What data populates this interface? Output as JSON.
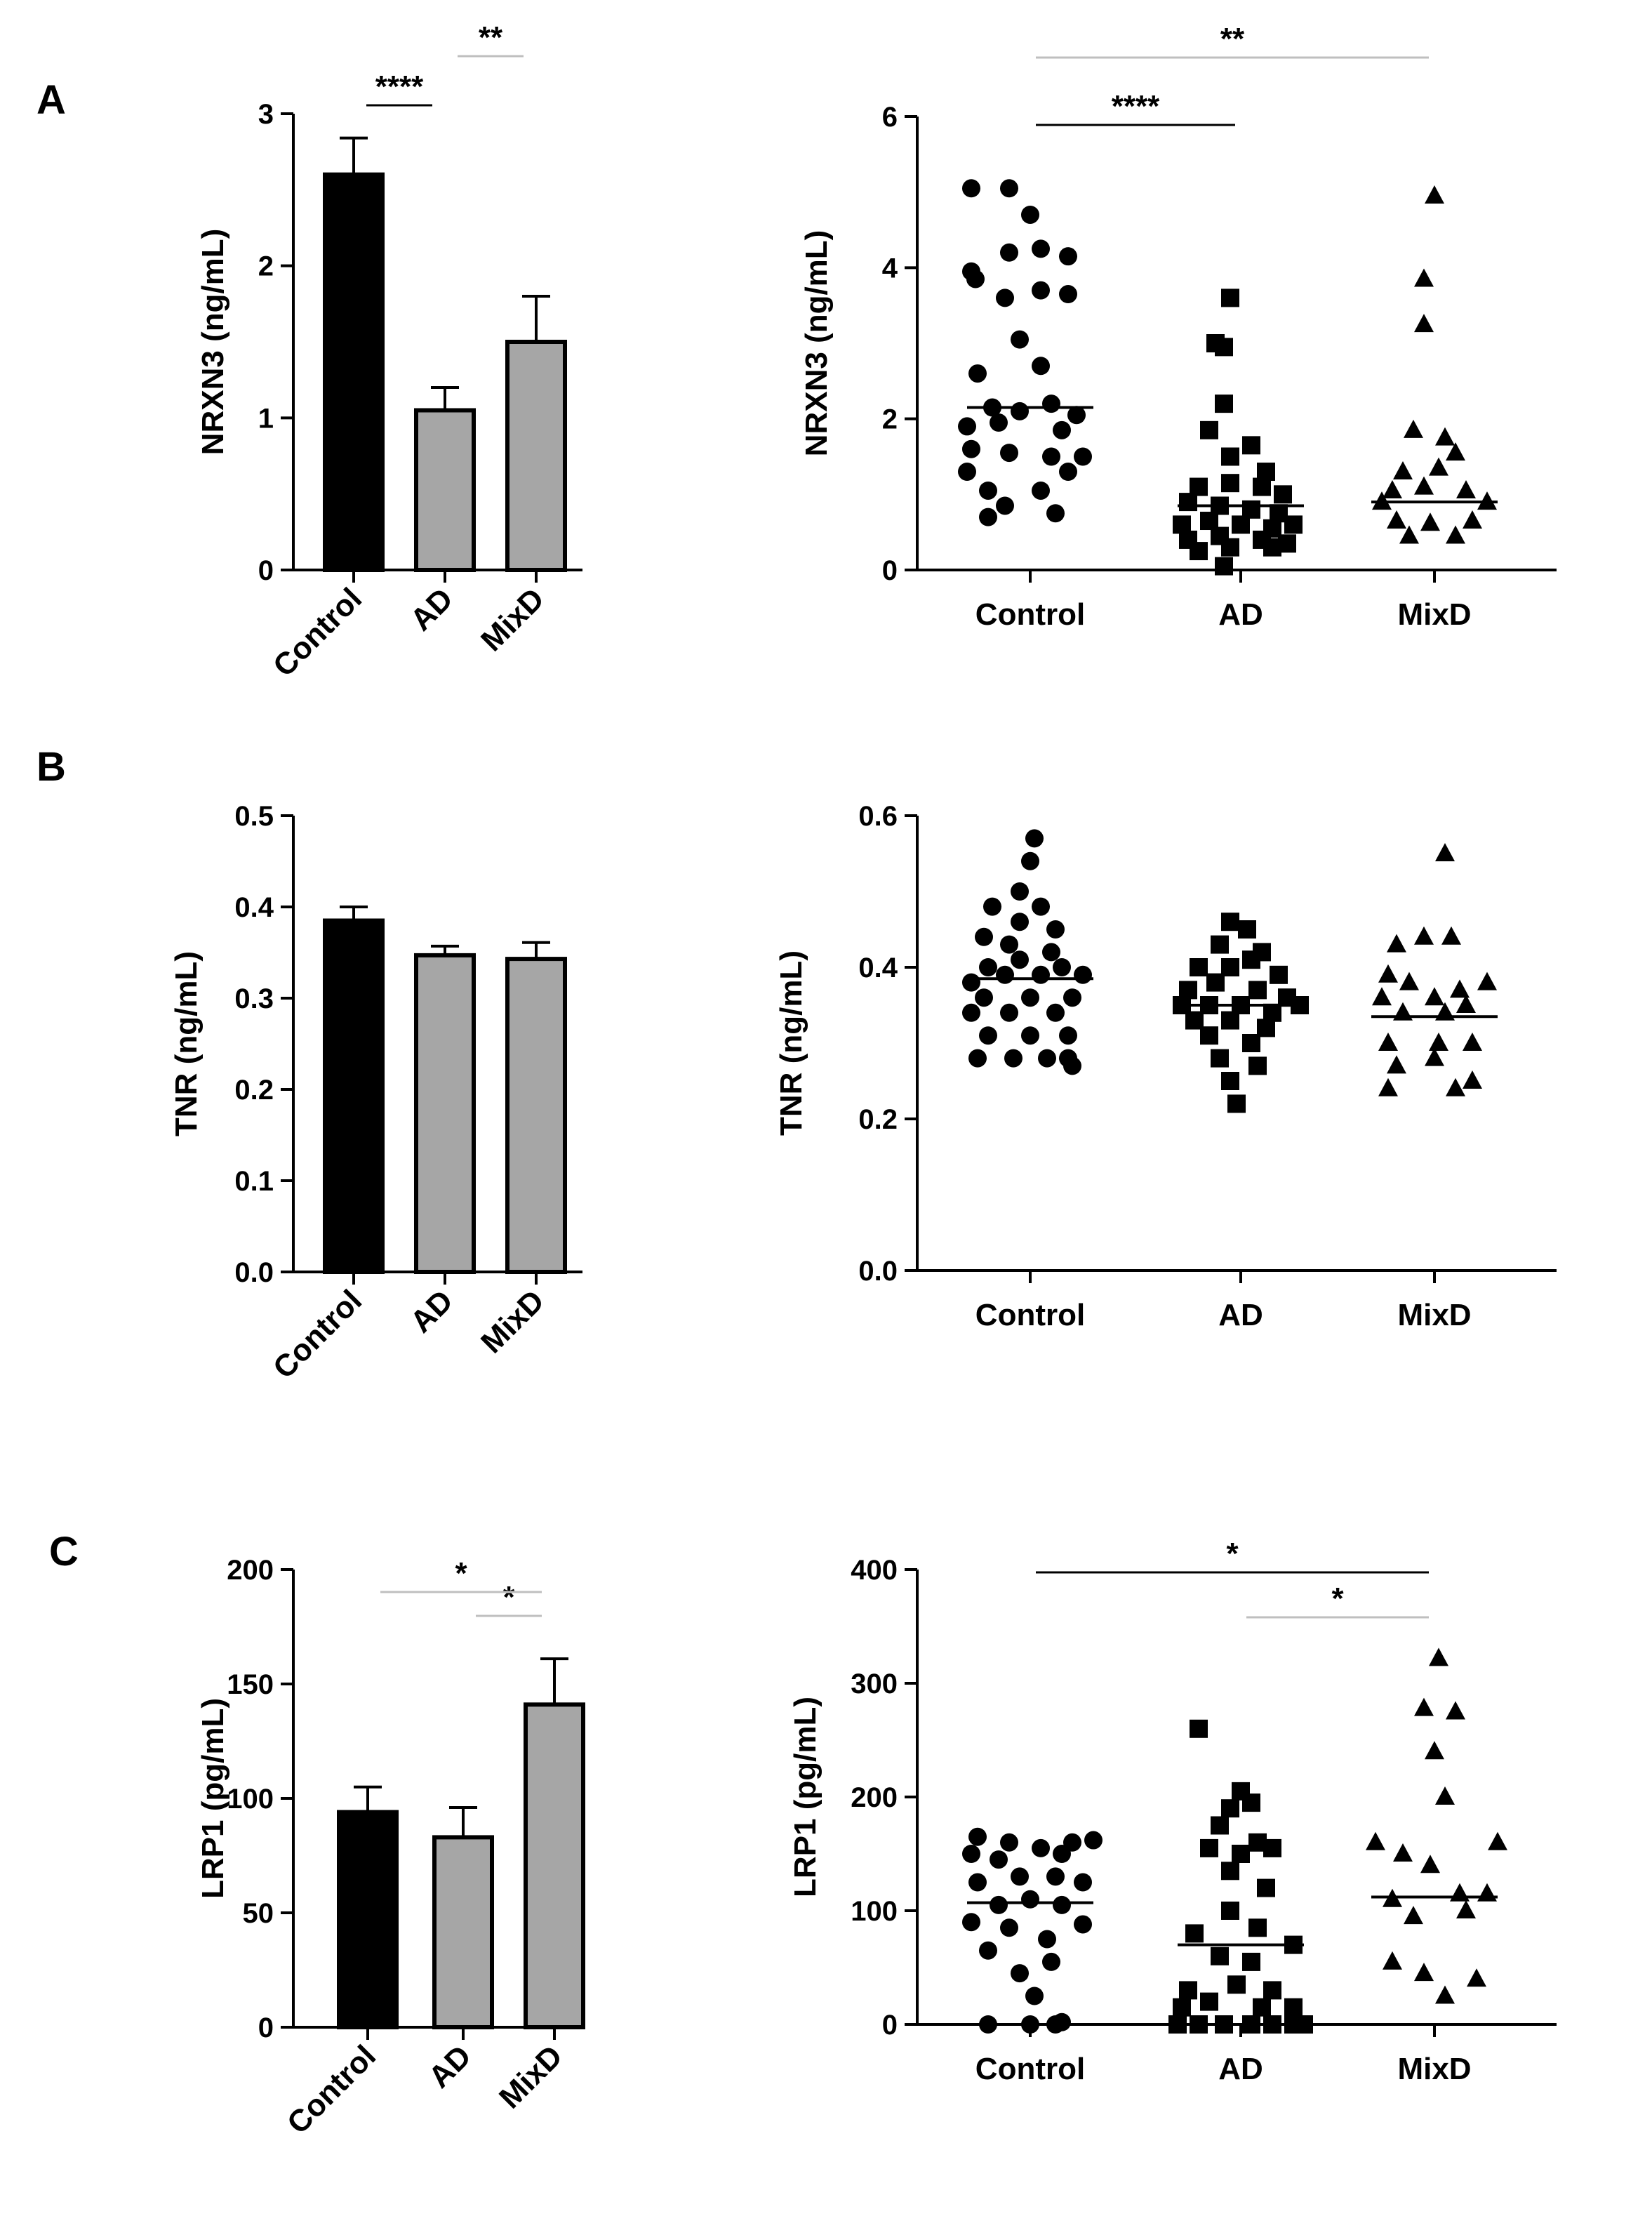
{
  "colors": {
    "control_bar": "#000000",
    "group_bar": "#a6a6a6",
    "mark": "#000000",
    "sig_line_dark": "#000000",
    "sig_line_light": "#bfbfbf"
  },
  "chart_data": [
    {
      "id": "A-bar",
      "panel": "A",
      "type": "bar",
      "ylabel": "NRXN3 (ng/mL)",
      "ylim": [
        0,
        3
      ],
      "yticks": [
        "0",
        "1",
        "2",
        "3"
      ],
      "categories": [
        "Control",
        "AD",
        "MixD"
      ],
      "values": [
        2.6,
        1.05,
        1.5
      ],
      "errors": [
        0.24,
        0.15,
        0.3
      ],
      "significance": [
        {
          "from": 0,
          "to": 1,
          "label": "****",
          "level": 1,
          "shade": "dark"
        },
        {
          "from": 1,
          "to": 2,
          "label": "**",
          "level": 2,
          "shade": "light"
        }
      ]
    },
    {
      "id": "A-scatter",
      "panel": "A",
      "type": "scatter",
      "ylabel": "NRXN3 (ng/mL)",
      "ylim": [
        0,
        6
      ],
      "yticks": [
        "0",
        "2",
        "4",
        "6"
      ],
      "categories": [
        "Control",
        "AD",
        "MixD"
      ],
      "markers": [
        "circle",
        "square",
        "triangle"
      ],
      "points": [
        [
          [
            -0.28,
            5.05
          ],
          [
            -0.1,
            5.05
          ],
          [
            0,
            4.7
          ],
          [
            -0.28,
            3.95
          ],
          [
            -0.1,
            4.2
          ],
          [
            0.05,
            4.25
          ],
          [
            0.18,
            4.15
          ],
          [
            -0.26,
            3.85
          ],
          [
            -0.12,
            3.6
          ],
          [
            0.05,
            3.7
          ],
          [
            0.18,
            3.65
          ],
          [
            -0.05,
            3.05
          ],
          [
            -0.25,
            2.6
          ],
          [
            0.05,
            2.7
          ],
          [
            -0.18,
            2.15
          ],
          [
            0.1,
            2.2
          ],
          [
            -0.05,
            2.1
          ],
          [
            0.22,
            2.05
          ],
          [
            -0.3,
            1.9
          ],
          [
            -0.15,
            1.95
          ],
          [
            0.15,
            1.85
          ],
          [
            -0.28,
            1.6
          ],
          [
            -0.1,
            1.55
          ],
          [
            0.1,
            1.5
          ],
          [
            0.25,
            1.5
          ],
          [
            -0.3,
            1.3
          ],
          [
            0.18,
            1.3
          ],
          [
            -0.2,
            1.05
          ],
          [
            0.05,
            1.05
          ],
          [
            -0.12,
            0.85
          ],
          [
            -0.2,
            0.7
          ],
          [
            0.12,
            0.75
          ]
        ],
        [
          [
            -0.05,
            3.6
          ],
          [
            -0.12,
            3.0
          ],
          [
            -0.08,
            2.95
          ],
          [
            -0.08,
            2.2
          ],
          [
            0.05,
            1.65
          ],
          [
            -0.15,
            1.85
          ],
          [
            -0.05,
            1.5
          ],
          [
            0.12,
            1.3
          ],
          [
            -0.2,
            1.1
          ],
          [
            -0.05,
            1.15
          ],
          [
            0.1,
            1.1
          ],
          [
            0.2,
            1.0
          ],
          [
            -0.25,
            0.9
          ],
          [
            -0.1,
            0.85
          ],
          [
            0.05,
            0.8
          ],
          [
            0.18,
            0.75
          ],
          [
            -0.28,
            0.6
          ],
          [
            -0.15,
            0.65
          ],
          [
            0.0,
            0.6
          ],
          [
            0.15,
            0.55
          ],
          [
            0.25,
            0.6
          ],
          [
            -0.25,
            0.4
          ],
          [
            -0.1,
            0.45
          ],
          [
            0.1,
            0.4
          ],
          [
            0.22,
            0.35
          ],
          [
            -0.2,
            0.25
          ],
          [
            -0.05,
            0.3
          ],
          [
            0.15,
            0.3
          ],
          [
            -0.08,
            0.05
          ]
        ],
        [
          [
            0.0,
            4.95
          ],
          [
            -0.05,
            3.85
          ],
          [
            -0.05,
            3.25
          ],
          [
            -0.1,
            1.85
          ],
          [
            0.05,
            1.75
          ],
          [
            0.1,
            1.55
          ],
          [
            -0.15,
            1.3
          ],
          [
            0.02,
            1.35
          ],
          [
            -0.2,
            1.05
          ],
          [
            -0.05,
            1.1
          ],
          [
            0.15,
            1.05
          ],
          [
            -0.25,
            0.9
          ],
          [
            0.25,
            0.9
          ],
          [
            -0.18,
            0.65
          ],
          [
            -0.02,
            0.62
          ],
          [
            0.18,
            0.65
          ],
          [
            -0.12,
            0.45
          ],
          [
            0.1,
            0.45
          ]
        ]
      ],
      "medians": [
        2.15,
        0.85,
        0.9
      ],
      "significance": [
        {
          "from": 0,
          "to": 1,
          "label": "****",
          "level": 1,
          "shade": "dark"
        },
        {
          "from": 0,
          "to": 2,
          "label": "**",
          "level": 2,
          "shade": "light"
        }
      ]
    },
    {
      "id": "B-bar",
      "panel": "B",
      "type": "bar",
      "ylabel": "TNR (ng/mL)",
      "ylim": [
        0,
        0.5
      ],
      "yticks": [
        "0.0",
        "0.1",
        "0.2",
        "0.3",
        "0.4",
        "0.5"
      ],
      "categories": [
        "Control",
        "AD",
        "MixD"
      ],
      "values": [
        0.385,
        0.347,
        0.343
      ],
      "errors": [
        0.015,
        0.01,
        0.018
      ],
      "significance": []
    },
    {
      "id": "B-scatter",
      "panel": "B",
      "type": "scatter",
      "ylabel": "TNR (ng/mL)",
      "ylim": [
        0,
        0.6
      ],
      "yticks": [
        "0.0",
        "0.2",
        "0.4",
        "0.6"
      ],
      "categories": [
        "Control",
        "AD",
        "MixD"
      ],
      "markers": [
        "circle",
        "square",
        "triangle"
      ],
      "points": [
        [
          [
            0.02,
            0.57
          ],
          [
            0.0,
            0.54
          ],
          [
            -0.05,
            0.5
          ],
          [
            -0.18,
            0.48
          ],
          [
            0.05,
            0.48
          ],
          [
            -0.05,
            0.46
          ],
          [
            0.12,
            0.45
          ],
          [
            -0.22,
            0.44
          ],
          [
            -0.1,
            0.43
          ],
          [
            0.1,
            0.42
          ],
          [
            -0.2,
            0.4
          ],
          [
            -0.05,
            0.41
          ],
          [
            0.15,
            0.4
          ],
          [
            -0.28,
            0.38
          ],
          [
            -0.12,
            0.39
          ],
          [
            0.05,
            0.39
          ],
          [
            0.25,
            0.39
          ],
          [
            -0.22,
            0.36
          ],
          [
            0.0,
            0.36
          ],
          [
            0.2,
            0.36
          ],
          [
            -0.28,
            0.34
          ],
          [
            -0.1,
            0.34
          ],
          [
            0.12,
            0.34
          ],
          [
            -0.2,
            0.31
          ],
          [
            0.0,
            0.31
          ],
          [
            0.18,
            0.31
          ],
          [
            -0.25,
            0.28
          ],
          [
            -0.08,
            0.28
          ],
          [
            0.08,
            0.28
          ],
          [
            0.18,
            0.28
          ],
          [
            0.2,
            0.27
          ]
        ],
        [
          [
            -0.05,
            0.46
          ],
          [
            0.03,
            0.45
          ],
          [
            -0.1,
            0.43
          ],
          [
            0.1,
            0.42
          ],
          [
            -0.2,
            0.4
          ],
          [
            -0.05,
            0.4
          ],
          [
            0.05,
            0.41
          ],
          [
            0.18,
            0.39
          ],
          [
            -0.25,
            0.37
          ],
          [
            -0.12,
            0.38
          ],
          [
            0.08,
            0.37
          ],
          [
            0.22,
            0.36
          ],
          [
            -0.28,
            0.35
          ],
          [
            -0.15,
            0.35
          ],
          [
            0.0,
            0.35
          ],
          [
            0.15,
            0.34
          ],
          [
            0.28,
            0.35
          ],
          [
            -0.22,
            0.33
          ],
          [
            -0.05,
            0.33
          ],
          [
            0.12,
            0.32
          ],
          [
            -0.15,
            0.31
          ],
          [
            0.05,
            0.3
          ],
          [
            -0.1,
            0.28
          ],
          [
            0.08,
            0.27
          ],
          [
            -0.05,
            0.25
          ],
          [
            -0.02,
            0.22
          ]
        ],
        [
          [
            0.05,
            0.55
          ],
          [
            -0.05,
            0.44
          ],
          [
            0.08,
            0.44
          ],
          [
            -0.18,
            0.43
          ],
          [
            -0.22,
            0.39
          ],
          [
            -0.12,
            0.38
          ],
          [
            0.12,
            0.37
          ],
          [
            0.25,
            0.38
          ],
          [
            -0.25,
            0.36
          ],
          [
            0.0,
            0.36
          ],
          [
            0.15,
            0.35
          ],
          [
            -0.15,
            0.34
          ],
          [
            0.05,
            0.34
          ],
          [
            -0.22,
            0.3
          ],
          [
            0.02,
            0.3
          ],
          [
            0.18,
            0.3
          ],
          [
            -0.18,
            0.27
          ],
          [
            0.0,
            0.28
          ],
          [
            -0.22,
            0.24
          ],
          [
            0.1,
            0.24
          ],
          [
            0.18,
            0.25
          ]
        ]
      ],
      "medians": [
        0.385,
        0.35,
        0.335
      ],
      "significance": []
    },
    {
      "id": "C-bar",
      "panel": "C",
      "type": "bar",
      "ylabel": "LRP1 (pg/mL)",
      "ylim": [
        0,
        200
      ],
      "yticks": [
        "0",
        "50",
        "100",
        "150",
        "200"
      ],
      "categories": [
        "Control",
        "AD",
        "MixD"
      ],
      "values": [
        94,
        83,
        141
      ],
      "errors": [
        11,
        13,
        20
      ],
      "significance": [
        {
          "from": 1,
          "to": 2,
          "label": "*",
          "level": 1,
          "shade": "light"
        },
        {
          "from": 0,
          "to": 2,
          "label": "*",
          "level": 2,
          "shade": "light"
        }
      ]
    },
    {
      "id": "C-scatter",
      "panel": "C",
      "type": "scatter",
      "ylabel": "LRP1 (pg/mL)",
      "ylim": [
        0,
        400
      ],
      "yticks": [
        "0",
        "100",
        "200",
        "300",
        "400"
      ],
      "categories": [
        "Control",
        "AD",
        "MixD"
      ],
      "markers": [
        "circle",
        "square",
        "triangle"
      ],
      "points": [
        [
          [
            -0.25,
            165
          ],
          [
            -0.1,
            160
          ],
          [
            0.05,
            155
          ],
          [
            0.2,
            160
          ],
          [
            0.3,
            162
          ],
          [
            -0.28,
            150
          ],
          [
            -0.15,
            145
          ],
          [
            0.15,
            150
          ],
          [
            -0.05,
            130
          ],
          [
            0.12,
            130
          ],
          [
            -0.25,
            125
          ],
          [
            0.25,
            125
          ],
          [
            -0.15,
            105
          ],
          [
            0.0,
            110
          ],
          [
            0.15,
            105
          ],
          [
            -0.28,
            90
          ],
          [
            0.25,
            88
          ],
          [
            -0.1,
            85
          ],
          [
            0.08,
            75
          ],
          [
            -0.2,
            65
          ],
          [
            0.1,
            55
          ],
          [
            -0.05,
            45
          ],
          [
            0.02,
            25
          ],
          [
            -0.2,
            0
          ],
          [
            0.0,
            0
          ],
          [
            0.12,
            0
          ],
          [
            0.15,
            2
          ]
        ],
        [
          [
            -0.2,
            260
          ],
          [
            0.0,
            205
          ],
          [
            -0.05,
            190
          ],
          [
            0.05,
            195
          ],
          [
            -0.1,
            175
          ],
          [
            0.08,
            160
          ],
          [
            -0.15,
            155
          ],
          [
            0.0,
            150
          ],
          [
            0.15,
            155
          ],
          [
            -0.05,
            135
          ],
          [
            0.12,
            120
          ],
          [
            -0.05,
            100
          ],
          [
            0.08,
            85
          ],
          [
            -0.22,
            80
          ],
          [
            0.25,
            70
          ],
          [
            -0.1,
            60
          ],
          [
            0.05,
            55
          ],
          [
            -0.25,
            30
          ],
          [
            0.15,
            30
          ],
          [
            -0.02,
            35
          ],
          [
            -0.28,
            15
          ],
          [
            -0.15,
            20
          ],
          [
            0.1,
            15
          ],
          [
            0.25,
            15
          ],
          [
            -0.3,
            0
          ],
          [
            -0.2,
            0
          ],
          [
            -0.08,
            0
          ],
          [
            0.05,
            0
          ],
          [
            0.15,
            0
          ],
          [
            0.25,
            0
          ],
          [
            0.3,
            0
          ]
        ],
        [
          [
            0.02,
            322
          ],
          [
            -0.05,
            278
          ],
          [
            0.1,
            275
          ],
          [
            0.0,
            240
          ],
          [
            0.05,
            200
          ],
          [
            -0.28,
            160
          ],
          [
            0.3,
            160
          ],
          [
            -0.15,
            150
          ],
          [
            -0.02,
            140
          ],
          [
            0.12,
            115
          ],
          [
            -0.2,
            110
          ],
          [
            0.15,
            100
          ],
          [
            0.25,
            115
          ],
          [
            -0.1,
            95
          ],
          [
            -0.2,
            55
          ],
          [
            -0.05,
            45
          ],
          [
            0.2,
            40
          ],
          [
            0.05,
            25
          ]
        ]
      ],
      "medians": [
        107,
        70,
        112
      ],
      "significance": [
        {
          "from": 0,
          "to": 2,
          "label": "*",
          "level": 2,
          "shade": "dark"
        },
        {
          "from": 1,
          "to": 2,
          "label": "*",
          "level": 1,
          "shade": "light"
        }
      ]
    }
  ]
}
